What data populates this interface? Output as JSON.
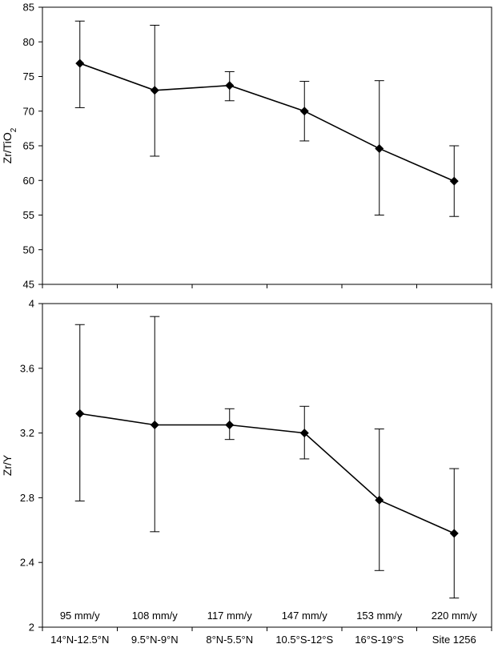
{
  "chart_data": [
    {
      "type": "line",
      "title": "",
      "ylabel": "Zr/TiO",
      "ylabel_subscript": "2",
      "xlabel": "",
      "ylim": [
        45,
        85
      ],
      "yticks": [
        45,
        50,
        55,
        60,
        65,
        70,
        75,
        80,
        85
      ],
      "ytick_labels": [
        "45",
        "50",
        "55",
        "60",
        "65",
        "70",
        "75",
        "80",
        "85"
      ],
      "grid": false,
      "series": [
        {
          "values": [
            76.9,
            73.0,
            73.7,
            70.0,
            64.6,
            59.9
          ],
          "err_low": [
            70.5,
            63.5,
            71.5,
            65.7,
            55.0,
            54.8
          ],
          "err_high": [
            83.0,
            82.4,
            75.7,
            74.3,
            74.4,
            65.0
          ],
          "color": "#000000",
          "marker": "diamond"
        }
      ]
    },
    {
      "type": "line",
      "title": "",
      "ylabel": "Zr/Y",
      "xlabel": "",
      "ylim": [
        2.0,
        4.0
      ],
      "yticks": [
        2.0,
        2.4,
        2.8,
        3.2,
        3.6,
        4.0
      ],
      "ytick_labels": [
        "2",
        "2.4",
        "2.8",
        "3.2",
        "3.6",
        "4"
      ],
      "grid": false,
      "categories": [
        "14°N-12.5°N",
        "9.5°N-9°N",
        "8°N-5.5°N",
        "10.5°S-12°S",
        "16°S-19°S",
        "Site 1256"
      ],
      "annotations": [
        "95 mm/y",
        "108 mm/y",
        "117 mm/y",
        "147 mm/y",
        "153 mm/y",
        "220 mm/y"
      ],
      "series": [
        {
          "values": [
            3.32,
            3.25,
            3.25,
            3.2,
            2.785,
            2.58
          ],
          "err_low": [
            2.78,
            2.59,
            3.16,
            3.04,
            2.35,
            2.18
          ],
          "err_high": [
            3.87,
            3.92,
            3.35,
            3.365,
            3.225,
            2.98
          ],
          "color": "#000000",
          "marker": "diamond"
        }
      ]
    }
  ]
}
